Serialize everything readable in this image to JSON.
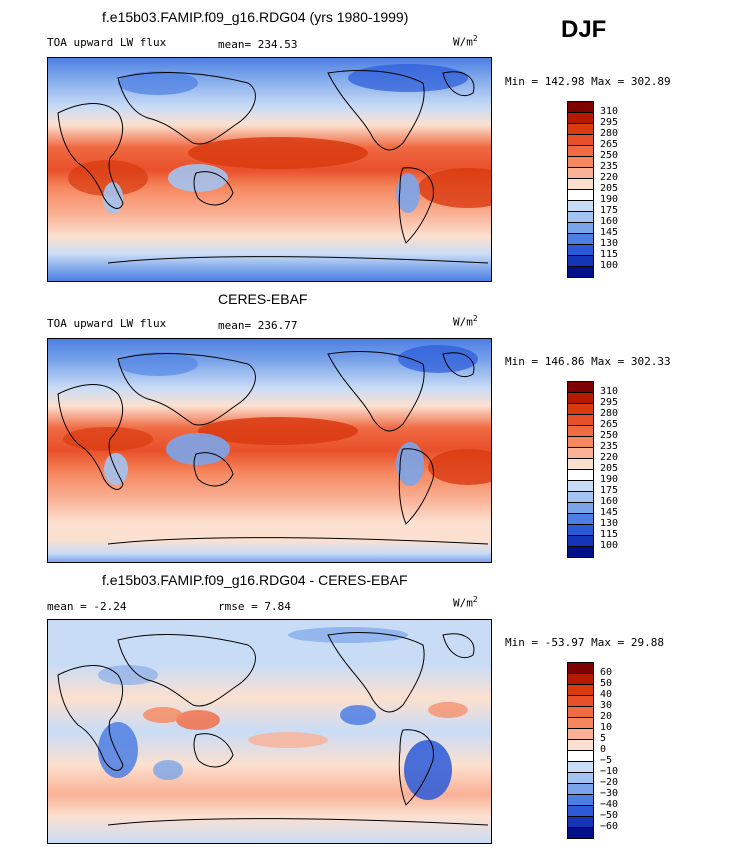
{
  "season": "DJF",
  "panels": [
    {
      "title": "f.e15b03.FAMIP.f09_g16.RDG04 (yrs 1980-1999)",
      "left_label": "TOA upward LW flux",
      "center_label": "mean= 234.53",
      "units": "W/m",
      "units_sup": "2",
      "minmax": "Min = 142.98 Max = 302.89",
      "type": "abs"
    },
    {
      "title": "CERES-EBAF",
      "left_label": "TOA upward LW flux",
      "center_label": "mean= 236.77",
      "units": "W/m",
      "units_sup": "2",
      "minmax": "Min = 146.86 Max = 302.33",
      "type": "abs"
    },
    {
      "title": "f.e15b03.FAMIP.f09_g16.RDG04 - CERES-EBAF",
      "left_label": "mean =  -2.24",
      "center_label": "rmse =   7.84",
      "units": "W/m",
      "units_sup": "2",
      "minmax": "Min = -53.97 Max =  29.88",
      "type": "diff"
    }
  ],
  "colorbars": {
    "abs": {
      "labels": [
        "310",
        "295",
        "280",
        "265",
        "250",
        "235",
        "220",
        "205",
        "190",
        "175",
        "160",
        "145",
        "130",
        "115",
        "100"
      ],
      "colors": [
        "#7f0000",
        "#b51a00",
        "#d93a10",
        "#e8502a",
        "#f06a42",
        "#f5875e",
        "#fab196",
        "#fce0cf",
        "#ffffff",
        "#c9dcf6",
        "#a3c3f0",
        "#7ba5ea",
        "#4d7fe3",
        "#2a5ad8",
        "#1535b8",
        "#000f8a"
      ]
    },
    "diff": {
      "labels": [
        "60",
        "50",
        "40",
        "30",
        "20",
        "10",
        "5",
        "0",
        "−5",
        "−10",
        "−20",
        "−30",
        "−40",
        "−50",
        "−60"
      ],
      "colors": [
        "#7f0000",
        "#b51a00",
        "#d93a10",
        "#e8502a",
        "#f06a42",
        "#f5875e",
        "#fab196",
        "#fce0cf",
        "#ffffff",
        "#c9dcf6",
        "#a3c3f0",
        "#7ba5ea",
        "#4d7fe3",
        "#2a5ad8",
        "#1535b8",
        "#000f8a"
      ]
    }
  }
}
